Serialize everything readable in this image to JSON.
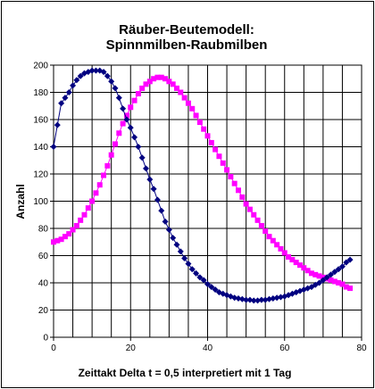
{
  "chart_data": {
    "type": "scatter",
    "title_lines": [
      "Räuber-Beutemodell:",
      "Spinnmilben-Raubmilben"
    ],
    "xlabel": "Zeittakt Delta t = 0,5 interpretiert mit 1 Tag",
    "ylabel": "Anzahl",
    "xlim": [
      0,
      80
    ],
    "ylim": [
      0,
      200
    ],
    "x_ticks": [
      0,
      20,
      40,
      60,
      80
    ],
    "y_ticks": [
      0,
      20,
      40,
      60,
      80,
      100,
      120,
      140,
      160,
      180,
      200
    ],
    "grid": true,
    "legend": "none",
    "series": [
      {
        "color": "#000080",
        "marker": "diamond",
        "x": [
          0,
          1,
          2,
          3,
          4,
          5,
          6,
          7,
          8,
          9,
          10,
          11,
          12,
          13,
          14,
          15,
          16,
          17,
          18,
          19,
          20,
          21,
          22,
          23,
          24,
          25,
          26,
          27,
          28,
          29,
          30,
          31,
          32,
          33,
          34,
          35,
          36,
          37,
          38,
          39,
          40,
          41,
          42,
          43,
          44,
          45,
          46,
          47,
          48,
          49,
          50,
          51,
          52,
          53,
          54,
          55,
          56,
          57,
          58,
          59,
          60,
          61,
          62,
          63,
          64,
          65,
          66,
          67,
          68,
          69,
          70,
          71,
          72,
          73,
          74,
          75,
          76,
          77
        ],
        "y": [
          140,
          156,
          172,
          176,
          180,
          185,
          189,
          192,
          194,
          195,
          196,
          196,
          196,
          195,
          192,
          188,
          183,
          176,
          168,
          160,
          154,
          147,
          140,
          132,
          124,
          116,
          109,
          101,
          93,
          85,
          79,
          73,
          68,
          63,
          58,
          54,
          50,
          47,
          44,
          42,
          39,
          37,
          35,
          33,
          32,
          31,
          30,
          29,
          28.5,
          28,
          27.5,
          27.5,
          27,
          27,
          27.5,
          27.5,
          28,
          28.5,
          29,
          29.5,
          30,
          31,
          32,
          33,
          34,
          35,
          36,
          37,
          38.5,
          40,
          42,
          44,
          46,
          48,
          50,
          52,
          55,
          57
        ]
      },
      {
        "color": "#ff00ff",
        "marker": "square",
        "x": [
          0,
          1,
          2,
          3,
          4,
          5,
          6,
          7,
          8,
          9,
          10,
          11,
          12,
          13,
          14,
          15,
          16,
          17,
          18,
          19,
          20,
          21,
          22,
          23,
          24,
          25,
          26,
          27,
          28,
          29,
          30,
          31,
          32,
          33,
          34,
          35,
          36,
          37,
          38,
          39,
          40,
          41,
          42,
          43,
          44,
          45,
          46,
          47,
          48,
          49,
          50,
          51,
          52,
          53,
          54,
          55,
          56,
          57,
          58,
          59,
          60,
          61,
          62,
          63,
          64,
          65,
          66,
          67,
          68,
          69,
          70,
          71,
          72,
          73,
          74,
          75,
          76,
          77
        ],
        "y": [
          70,
          71,
          72,
          74,
          76,
          79,
          82,
          86,
          90,
          95,
          100,
          106,
          112,
          119,
          126,
          134,
          142,
          150,
          157,
          163,
          169,
          174,
          179,
          183,
          186,
          188,
          190,
          191,
          191,
          190,
          188,
          186,
          183,
          180,
          176,
          172,
          168,
          163,
          158,
          153,
          148,
          143,
          138,
          133,
          128,
          123,
          118,
          113,
          108,
          103,
          98,
          94,
          90,
          86,
          82,
          78,
          74,
          71,
          68,
          65,
          62,
          59,
          57,
          55,
          53,
          51,
          49,
          47,
          46,
          45,
          44,
          43,
          42,
          41,
          40,
          39,
          37,
          36
        ]
      }
    ]
  }
}
